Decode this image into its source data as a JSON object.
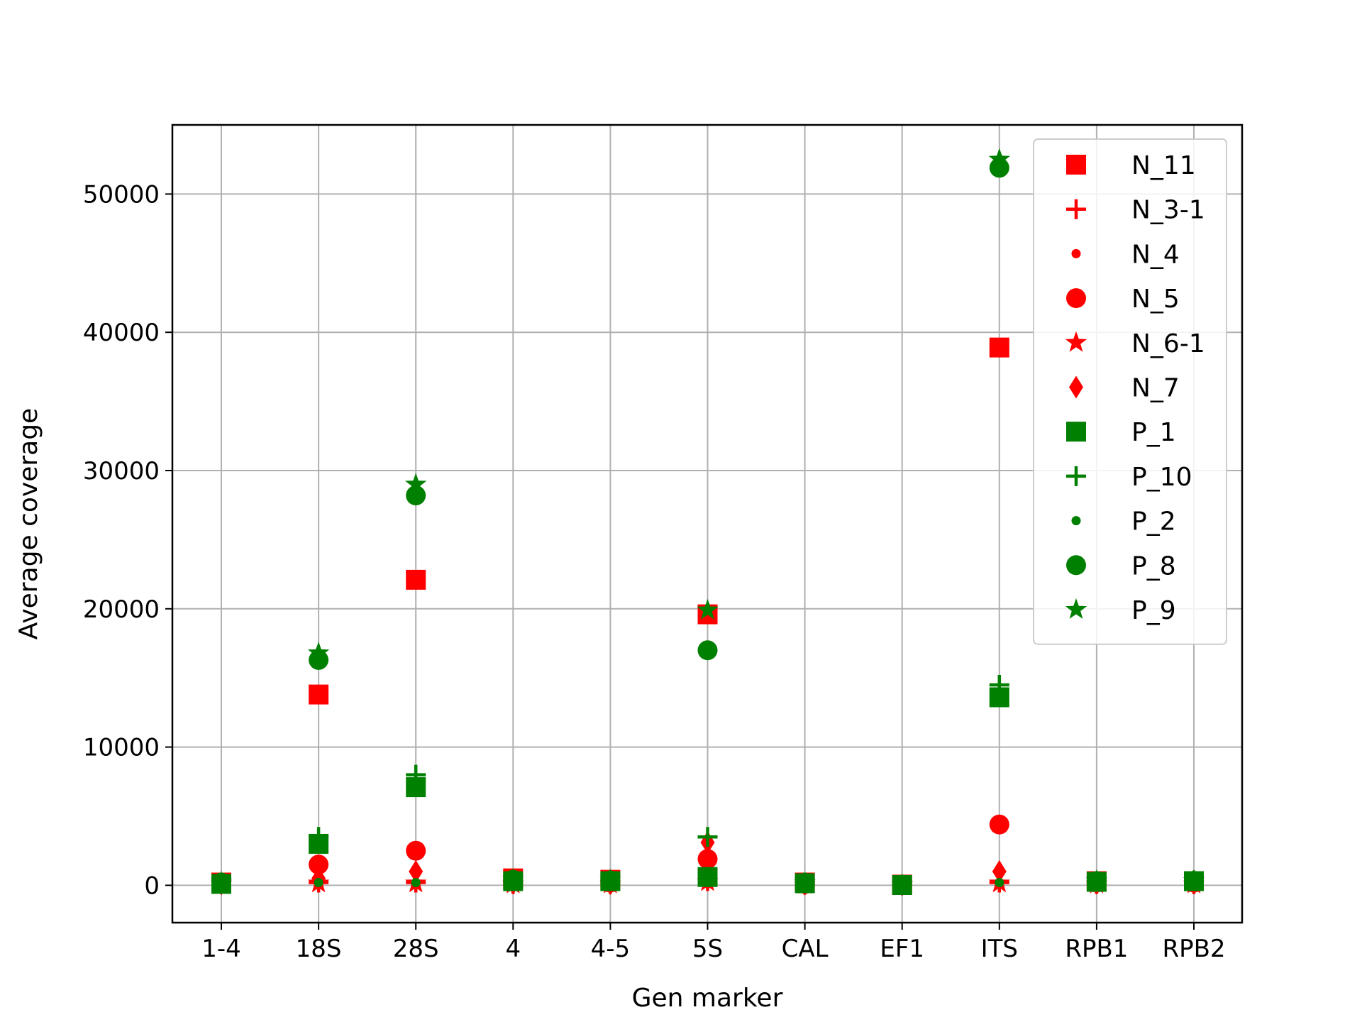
{
  "chart_data": {
    "type": "scatter",
    "xlabel": "Gen marker",
    "ylabel": "Average coverage",
    "categories": [
      "1-4",
      "18S",
      "28S",
      "4",
      "4-5",
      "5S",
      "CAL",
      "EF1",
      "ITS",
      "RPB1",
      "RPB2"
    ],
    "ylim": [
      -2700,
      55000
    ],
    "yticks": [
      0,
      10000,
      20000,
      30000,
      40000,
      50000
    ],
    "grid": true,
    "legend_position": "top-right",
    "colors": {
      "N": "#ff0000",
      "P": "#008000"
    },
    "series": [
      {
        "name": "N_11",
        "marker": "square",
        "color": "#ff0000",
        "values": [
          200,
          13800,
          22100,
          500,
          400,
          19600,
          200,
          50,
          38900,
          300,
          300
        ]
      },
      {
        "name": "N_3-1",
        "marker": "plus",
        "color": "#ff0000",
        "values": [
          100,
          200,
          200,
          100,
          100,
          300,
          50,
          20,
          200,
          100,
          100
        ]
      },
      {
        "name": "N_4",
        "marker": "point",
        "color": "#ff0000",
        "values": [
          50,
          100,
          100,
          50,
          50,
          200,
          50,
          10,
          100,
          50,
          50
        ]
      },
      {
        "name": "N_5",
        "marker": "circle",
        "color": "#ff0000",
        "values": [
          150,
          1500,
          2500,
          300,
          200,
          1900,
          100,
          30,
          4400,
          200,
          200
        ]
      },
      {
        "name": "N_6-1",
        "marker": "star",
        "color": "#ff0000",
        "values": [
          80,
          150,
          150,
          80,
          80,
          250,
          50,
          10,
          150,
          80,
          80
        ]
      },
      {
        "name": "N_7",
        "marker": "diamond",
        "color": "#ff0000",
        "values": [
          100,
          500,
          1000,
          150,
          120,
          3100,
          80,
          20,
          1000,
          150,
          150
        ]
      },
      {
        "name": "P_1",
        "marker": "square",
        "color": "#008000",
        "values": [
          100,
          3000,
          7100,
          300,
          300,
          600,
          150,
          20,
          13600,
          250,
          300
        ]
      },
      {
        "name": "P_10",
        "marker": "plus",
        "color": "#008000",
        "values": [
          150,
          3500,
          8000,
          350,
          350,
          3500,
          200,
          30,
          14500,
          300,
          350
        ]
      },
      {
        "name": "P_2",
        "marker": "point",
        "color": "#008000",
        "values": [
          50,
          200,
          200,
          50,
          50,
          200,
          50,
          10,
          200,
          50,
          50
        ]
      },
      {
        "name": "P_8",
        "marker": "circle",
        "color": "#008000",
        "values": [
          200,
          16300,
          28200,
          400,
          350,
          17000,
          150,
          40,
          51900,
          300,
          300
        ]
      },
      {
        "name": "P_9",
        "marker": "star",
        "color": "#008000",
        "values": [
          220,
          16800,
          29000,
          420,
          380,
          19900,
          180,
          50,
          52500,
          330,
          330
        ]
      }
    ]
  }
}
